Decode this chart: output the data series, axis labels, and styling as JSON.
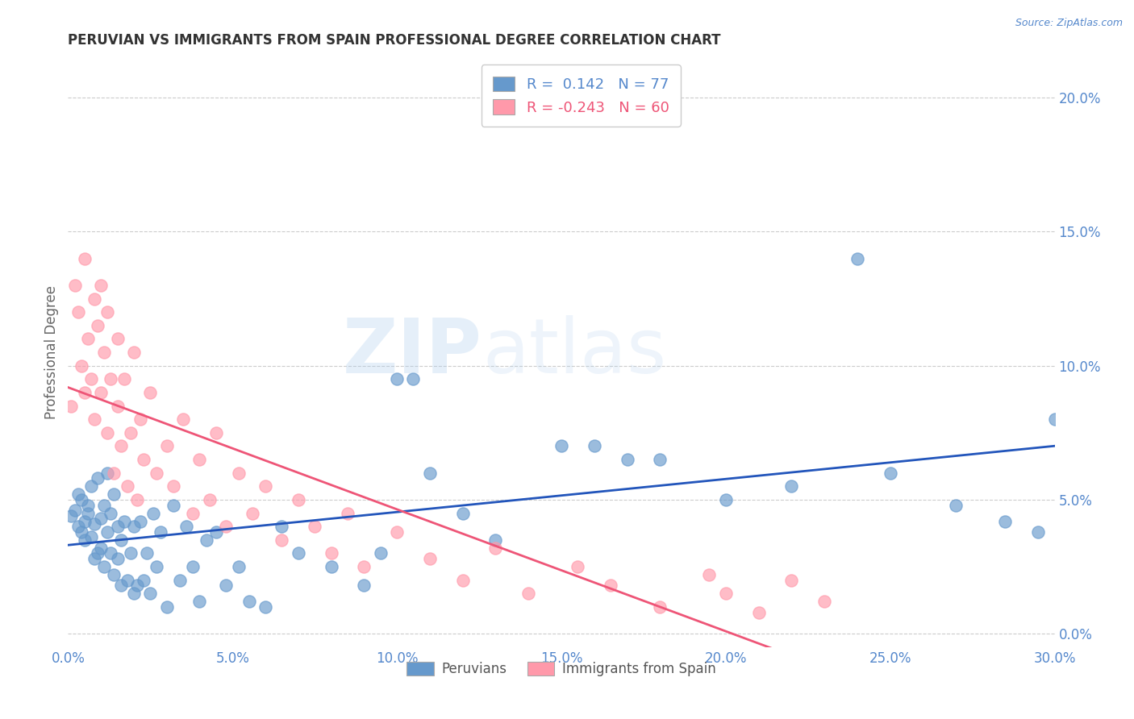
{
  "title": "PERUVIAN VS IMMIGRANTS FROM SPAIN PROFESSIONAL DEGREE CORRELATION CHART",
  "source_text": "Source: ZipAtlas.com",
  "ylabel": "Professional Degree",
  "xlim": [
    0.0,
    0.3
  ],
  "ylim": [
    -0.005,
    0.215
  ],
  "xticks": [
    0.0,
    0.05,
    0.1,
    0.15,
    0.2,
    0.25,
    0.3
  ],
  "xtick_labels": [
    "0.0%",
    "5.0%",
    "10.0%",
    "15.0%",
    "20.0%",
    "25.0%",
    "30.0%"
  ],
  "yticks": [
    0.0,
    0.05,
    0.1,
    0.15,
    0.2
  ],
  "ytick_labels": [
    "0.0%",
    "5.0%",
    "10.0%",
    "15.0%",
    "20.0%"
  ],
  "blue_color": "#6699CC",
  "pink_color": "#FF99AA",
  "trend_blue": "#2255BB",
  "trend_pink": "#EE5577",
  "legend_R_blue": " 0.142",
  "legend_N_blue": "77",
  "legend_R_pink": "-0.243",
  "legend_N_pink": "60",
  "legend_label_blue": "Peruvians",
  "legend_label_pink": "Immigrants from Spain",
  "watermark_zip": "ZIP",
  "watermark_atlas": "atlas",
  "background_color": "#FFFFFF",
  "title_color": "#333333",
  "axis_label_color": "#666666",
  "tick_color": "#5588CC",
  "grid_color": "#CCCCCC",
  "blue_scatter_x": [
    0.001,
    0.002,
    0.003,
    0.003,
    0.004,
    0.004,
    0.005,
    0.005,
    0.006,
    0.006,
    0.007,
    0.007,
    0.008,
    0.008,
    0.009,
    0.009,
    0.01,
    0.01,
    0.011,
    0.011,
    0.012,
    0.012,
    0.013,
    0.013,
    0.014,
    0.014,
    0.015,
    0.015,
    0.016,
    0.016,
    0.017,
    0.018,
    0.019,
    0.02,
    0.02,
    0.021,
    0.022,
    0.023,
    0.024,
    0.025,
    0.026,
    0.027,
    0.028,
    0.03,
    0.032,
    0.034,
    0.036,
    0.038,
    0.04,
    0.042,
    0.045,
    0.048,
    0.052,
    0.055,
    0.06,
    0.065,
    0.07,
    0.08,
    0.09,
    0.1,
    0.11,
    0.12,
    0.13,
    0.15,
    0.17,
    0.2,
    0.22,
    0.25,
    0.27,
    0.295,
    0.3,
    0.285,
    0.24,
    0.16,
    0.18,
    0.105,
    0.095
  ],
  "blue_scatter_y": [
    0.044,
    0.046,
    0.04,
    0.052,
    0.038,
    0.05,
    0.042,
    0.035,
    0.045,
    0.048,
    0.036,
    0.055,
    0.041,
    0.028,
    0.058,
    0.03,
    0.043,
    0.032,
    0.048,
    0.025,
    0.06,
    0.038,
    0.03,
    0.045,
    0.022,
    0.052,
    0.028,
    0.04,
    0.035,
    0.018,
    0.042,
    0.02,
    0.03,
    0.015,
    0.04,
    0.018,
    0.042,
    0.02,
    0.03,
    0.015,
    0.045,
    0.025,
    0.038,
    0.01,
    0.048,
    0.02,
    0.04,
    0.025,
    0.012,
    0.035,
    0.038,
    0.018,
    0.025,
    0.012,
    0.01,
    0.04,
    0.03,
    0.025,
    0.018,
    0.095,
    0.06,
    0.045,
    0.035,
    0.07,
    0.065,
    0.05,
    0.055,
    0.06,
    0.048,
    0.038,
    0.08,
    0.042,
    0.14,
    0.07,
    0.065,
    0.095,
    0.03
  ],
  "pink_scatter_x": [
    0.001,
    0.002,
    0.003,
    0.004,
    0.005,
    0.005,
    0.006,
    0.007,
    0.008,
    0.008,
    0.009,
    0.01,
    0.01,
    0.011,
    0.012,
    0.012,
    0.013,
    0.014,
    0.015,
    0.015,
    0.016,
    0.017,
    0.018,
    0.019,
    0.02,
    0.021,
    0.022,
    0.023,
    0.025,
    0.027,
    0.03,
    0.032,
    0.035,
    0.038,
    0.04,
    0.043,
    0.045,
    0.048,
    0.052,
    0.056,
    0.06,
    0.065,
    0.07,
    0.075,
    0.08,
    0.085,
    0.09,
    0.1,
    0.11,
    0.12,
    0.13,
    0.14,
    0.155,
    0.165,
    0.18,
    0.195,
    0.2,
    0.21,
    0.22,
    0.23
  ],
  "pink_scatter_y": [
    0.085,
    0.13,
    0.12,
    0.1,
    0.14,
    0.09,
    0.11,
    0.095,
    0.125,
    0.08,
    0.115,
    0.09,
    0.13,
    0.105,
    0.075,
    0.12,
    0.095,
    0.06,
    0.085,
    0.11,
    0.07,
    0.095,
    0.055,
    0.075,
    0.105,
    0.05,
    0.08,
    0.065,
    0.09,
    0.06,
    0.07,
    0.055,
    0.08,
    0.045,
    0.065,
    0.05,
    0.075,
    0.04,
    0.06,
    0.045,
    0.055,
    0.035,
    0.05,
    0.04,
    0.03,
    0.045,
    0.025,
    0.038,
    0.028,
    0.02,
    0.032,
    0.015,
    0.025,
    0.018,
    0.01,
    0.022,
    0.015,
    0.008,
    0.02,
    0.012
  ]
}
